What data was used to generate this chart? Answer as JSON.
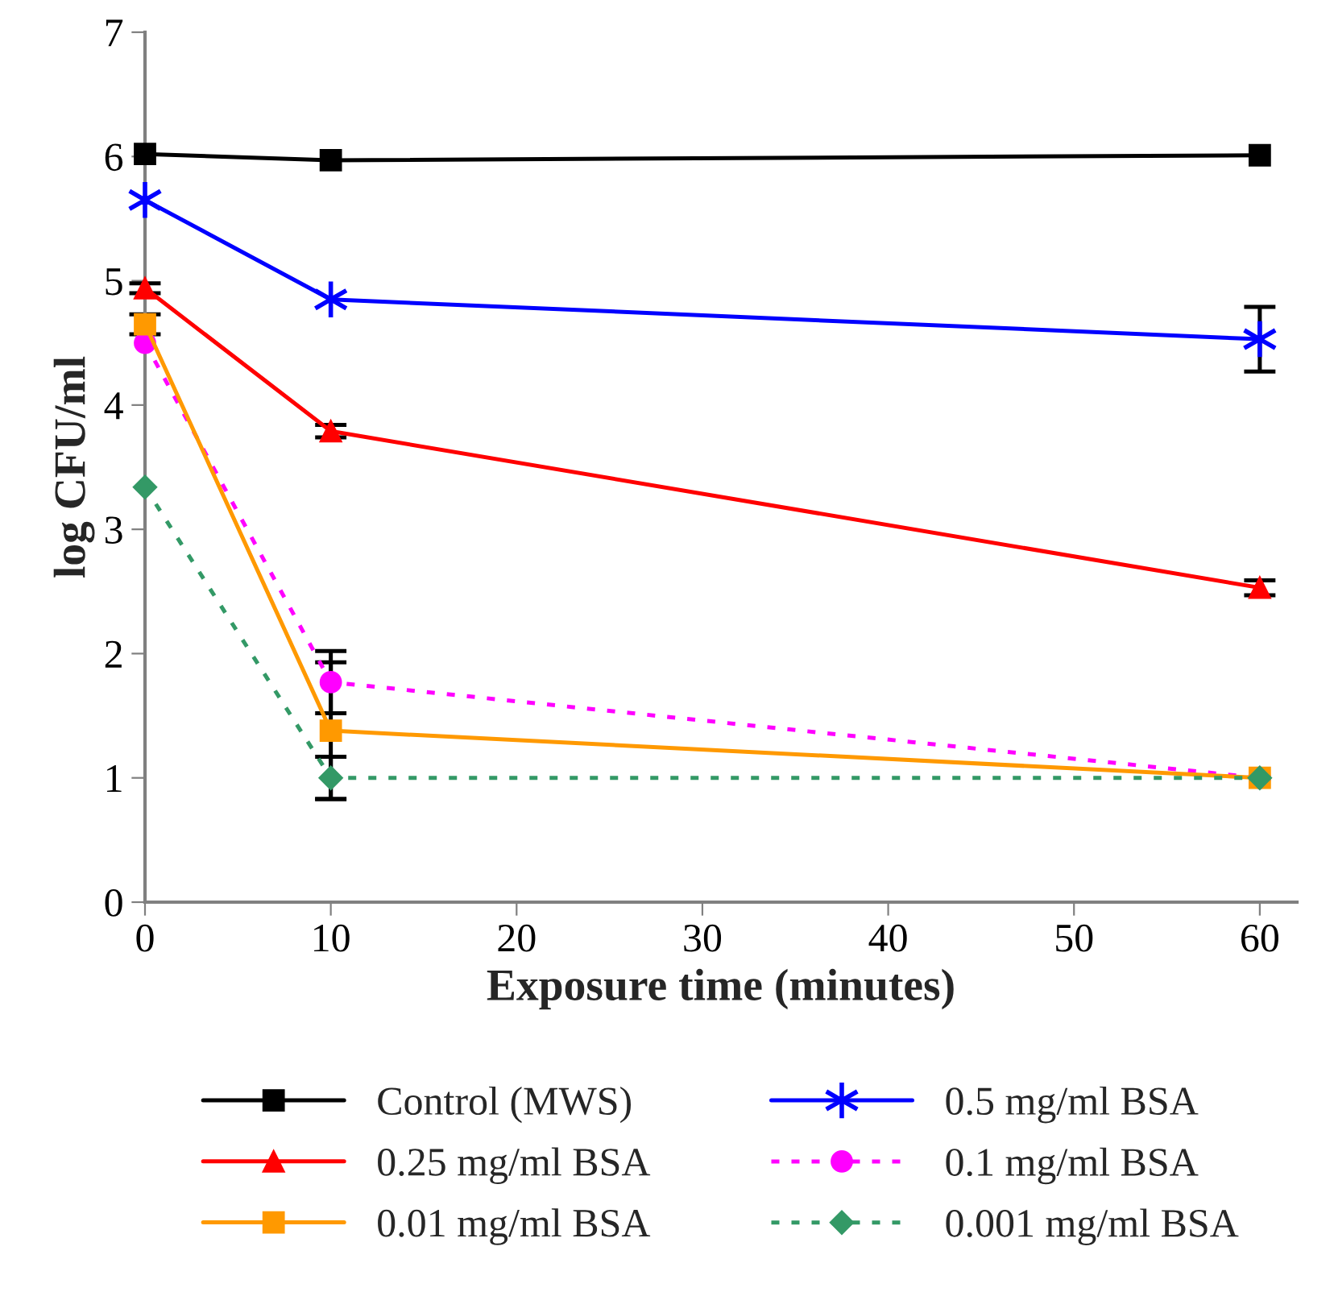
{
  "chart_data": {
    "type": "line",
    "xlabel": "Exposure time (minutes)",
    "ylabel": "log CFU/ml",
    "x": [
      0,
      10,
      60
    ],
    "xlim": [
      0,
      62
    ],
    "xticks": [
      0,
      10,
      20,
      30,
      40,
      50,
      60
    ],
    "ylim": [
      0,
      7
    ],
    "yticks": [
      0,
      1,
      2,
      3,
      4,
      5,
      6,
      7
    ],
    "grid": false,
    "legend": "bottom",
    "series": [
      {
        "name": "Control (MWS)",
        "color": "#000000",
        "marker": "square",
        "line_style": "solid",
        "values": [
          6.02,
          5.97,
          6.01
        ]
      },
      {
        "name": "0.5 mg/ml BSA",
        "color": "#0000ff",
        "marker": "cross",
        "line_style": "solid",
        "values": [
          5.65,
          4.85,
          4.53
        ],
        "errors": [
          null,
          null,
          0.26
        ]
      },
      {
        "name": "0.25 mg/ml BSA",
        "color": "#ff0000",
        "marker": "triangle",
        "line_style": "solid",
        "values": [
          4.94,
          3.79,
          2.53
        ],
        "errors": [
          0.04,
          0.05,
          0.06
        ]
      },
      {
        "name": "0.1 mg/ml BSA",
        "color": "#ff00ff",
        "marker": "circle",
        "line_style": "dashed",
        "values": [
          4.5,
          1.77,
          1.0
        ],
        "errors": [
          null,
          0.25,
          null
        ]
      },
      {
        "name": "0.01 mg/ml BSA",
        "color": "#ff9900",
        "marker": "square",
        "line_style": "solid",
        "values": [
          4.65,
          1.38,
          1.0
        ],
        "errors": [
          0.08,
          0.55,
          null
        ]
      },
      {
        "name": "0.001 mg/ml BSA",
        "color": "#339966",
        "marker": "diamond",
        "line_style": "dashed",
        "values": [
          3.34,
          1.0,
          1.0
        ],
        "errors": [
          null,
          0.17,
          null
        ]
      }
    ]
  }
}
